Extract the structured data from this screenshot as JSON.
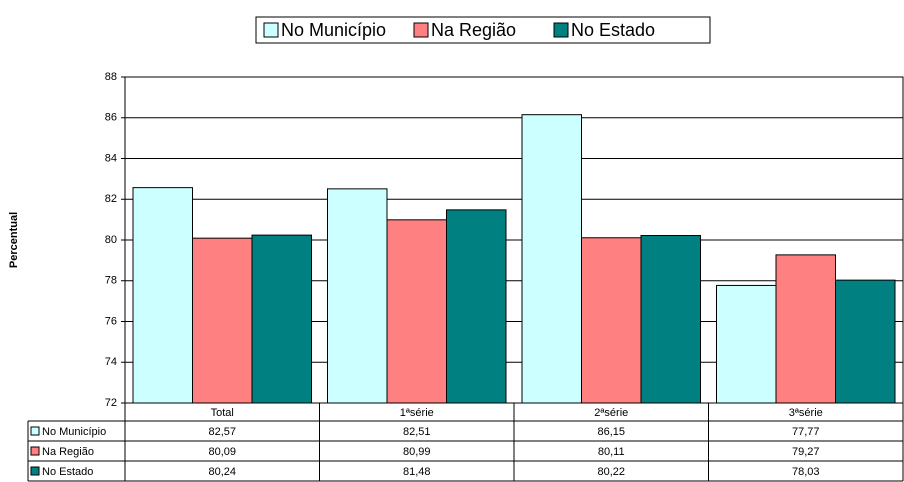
{
  "chart_data": {
    "type": "bar",
    "y_label": "Percentual",
    "categories": [
      "Total",
      "1ªsérie",
      "2ªsérie",
      "3ªsérie"
    ],
    "series": [
      {
        "name": "No Município",
        "color": "#ccffff",
        "values": [
          82.57,
          82.51,
          86.15,
          77.77
        ],
        "value_labels": [
          "82,57",
          "82,51",
          "86,15",
          "77,77"
        ]
      },
      {
        "name": "Na Região",
        "color": "#ff8080",
        "values": [
          80.09,
          80.99,
          80.11,
          79.27
        ],
        "value_labels": [
          "80,09",
          "80,99",
          "80,11",
          "79,27"
        ]
      },
      {
        "name": "No Estado",
        "color": "#008080",
        "values": [
          80.24,
          81.48,
          80.22,
          78.03
        ],
        "value_labels": [
          "80,24",
          "81,48",
          "80,22",
          "78,03"
        ]
      }
    ],
    "ylim": [
      72,
      88
    ],
    "yticks": [
      72,
      74,
      76,
      78,
      80,
      82,
      84,
      86,
      88
    ],
    "grid": true,
    "legend": "top"
  }
}
